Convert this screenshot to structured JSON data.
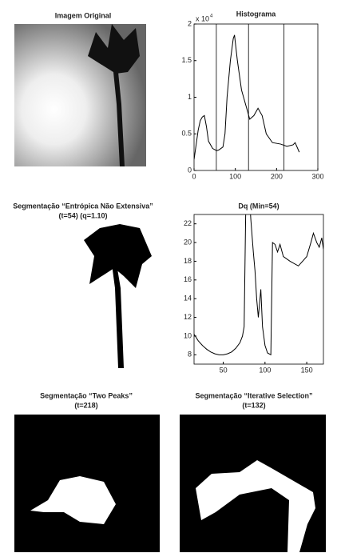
{
  "images": [
    {
      "title": [
        "Imagem Original"
      ]
    },
    {
      "title": [
        "Segmentação “Entrópica Não Extensiva”",
        "(t=54) (q=1.10)"
      ]
    },
    {
      "title": [
        "Segmentação “Two Peaks”",
        "(t=218)"
      ]
    },
    {
      "title": [
        "Segmentação “Iterative Selection”",
        "(t=132)"
      ]
    }
  ],
  "chart_data": [
    {
      "type": "line",
      "title": "Histograma",
      "y_scale_label": {
        "base": "x 10",
        "exponent": "4"
      },
      "x": [
        0,
        5,
        10,
        15,
        20,
        25,
        30,
        35,
        45,
        55,
        60,
        70,
        75,
        80,
        88,
        95,
        98,
        105,
        115,
        125,
        135,
        145,
        155,
        165,
        175,
        190,
        210,
        225,
        240,
        245,
        255
      ],
      "series": [
        {
          "color": "#000000",
          "values": [
            0.15,
            0.35,
            0.55,
            0.68,
            0.73,
            0.75,
            0.6,
            0.4,
            0.3,
            0.27,
            0.28,
            0.32,
            0.5,
            1.0,
            1.5,
            1.8,
            1.85,
            1.5,
            1.1,
            0.9,
            0.7,
            0.75,
            0.85,
            0.75,
            0.5,
            0.38,
            0.36,
            0.33,
            0.35,
            0.38,
            0.25
          ]
        }
      ],
      "thresholds": [
        54,
        132,
        218
      ],
      "xlim": [
        0,
        300
      ],
      "xticks": [
        0,
        100,
        200,
        300
      ],
      "ylim": [
        0,
        2
      ],
      "yticks": [
        0,
        0.5,
        1,
        1.5,
        2
      ]
    },
    {
      "type": "line",
      "title": "Dq (Min=54)",
      "x": [
        15,
        20,
        25,
        30,
        35,
        40,
        45,
        50,
        55,
        60,
        65,
        70,
        73,
        75,
        77,
        82,
        83,
        86,
        88,
        90,
        92,
        95,
        97,
        100,
        103,
        107,
        108,
        109,
        112,
        115,
        118,
        122,
        130,
        140,
        150,
        155,
        158,
        162,
        165,
        168,
        170
      ],
      "series": [
        {
          "color": "#000000",
          "values": [
            10.2,
            9.5,
            9,
            8.6,
            8.3,
            8.1,
            8,
            8,
            8.1,
            8.3,
            8.7,
            9.3,
            10,
            11,
            24,
            24,
            22.5,
            19,
            17,
            14,
            12,
            15,
            11,
            9,
            8.2,
            8,
            14,
            20,
            19.8,
            19,
            19.8,
            18.5,
            18,
            17.5,
            18.5,
            20,
            21,
            20,
            19.5,
            20.5,
            19.3
          ]
        }
      ],
      "xlim": [
        15,
        170
      ],
      "xticks": [
        50,
        100,
        150
      ],
      "ylim": [
        7,
        23
      ],
      "yticks": [
        8,
        10,
        12,
        14,
        16,
        18,
        20,
        22
      ]
    }
  ]
}
